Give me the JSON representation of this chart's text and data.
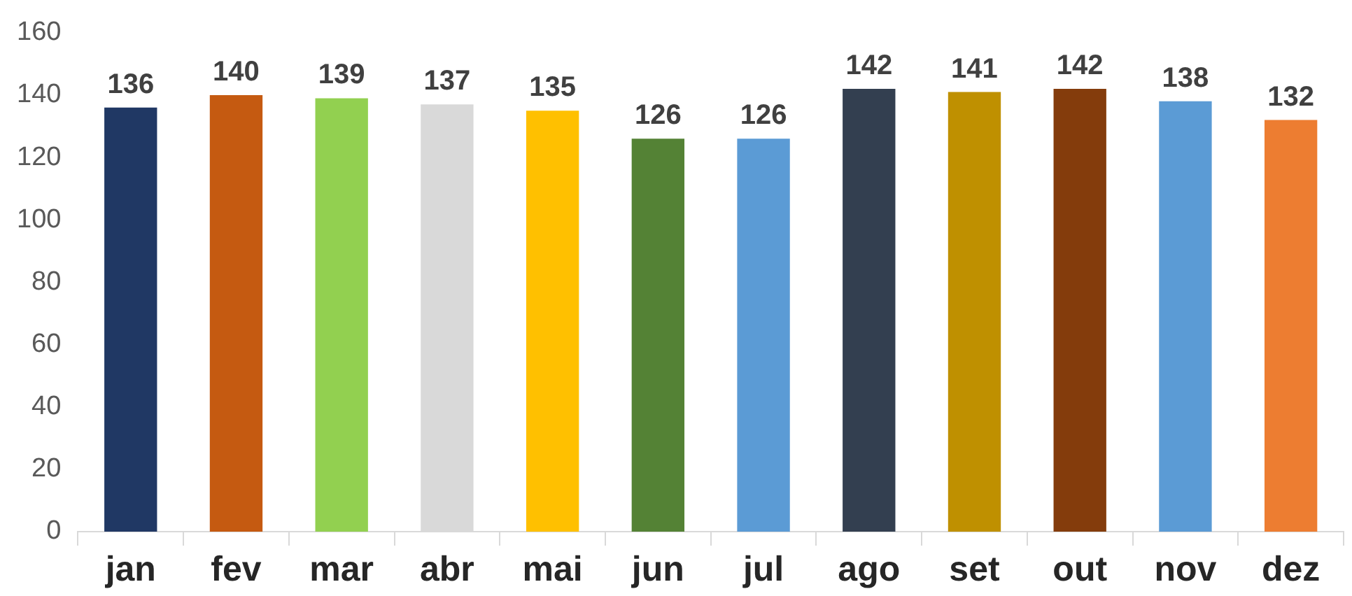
{
  "chart_data": {
    "type": "bar",
    "categories": [
      "jan",
      "fev",
      "mar",
      "abr",
      "mai",
      "jun",
      "jul",
      "ago",
      "set",
      "out",
      "nov",
      "dez"
    ],
    "values": [
      136,
      140,
      139,
      137,
      135,
      126,
      126,
      142,
      141,
      142,
      138,
      132
    ],
    "colors": [
      "#203864",
      "#c55a11",
      "#92d050",
      "#d9d9d9",
      "#ffc000",
      "#548235",
      "#5b9bd5",
      "#333f50",
      "#bf9000",
      "#843c0c",
      "#5b9bd5",
      "#ed7d31"
    ],
    "ylim": [
      0,
      160
    ],
    "yticks": [
      0,
      20,
      40,
      60,
      80,
      100,
      120,
      140,
      160
    ],
    "grid": false,
    "legend": false,
    "data_labels": true
  }
}
